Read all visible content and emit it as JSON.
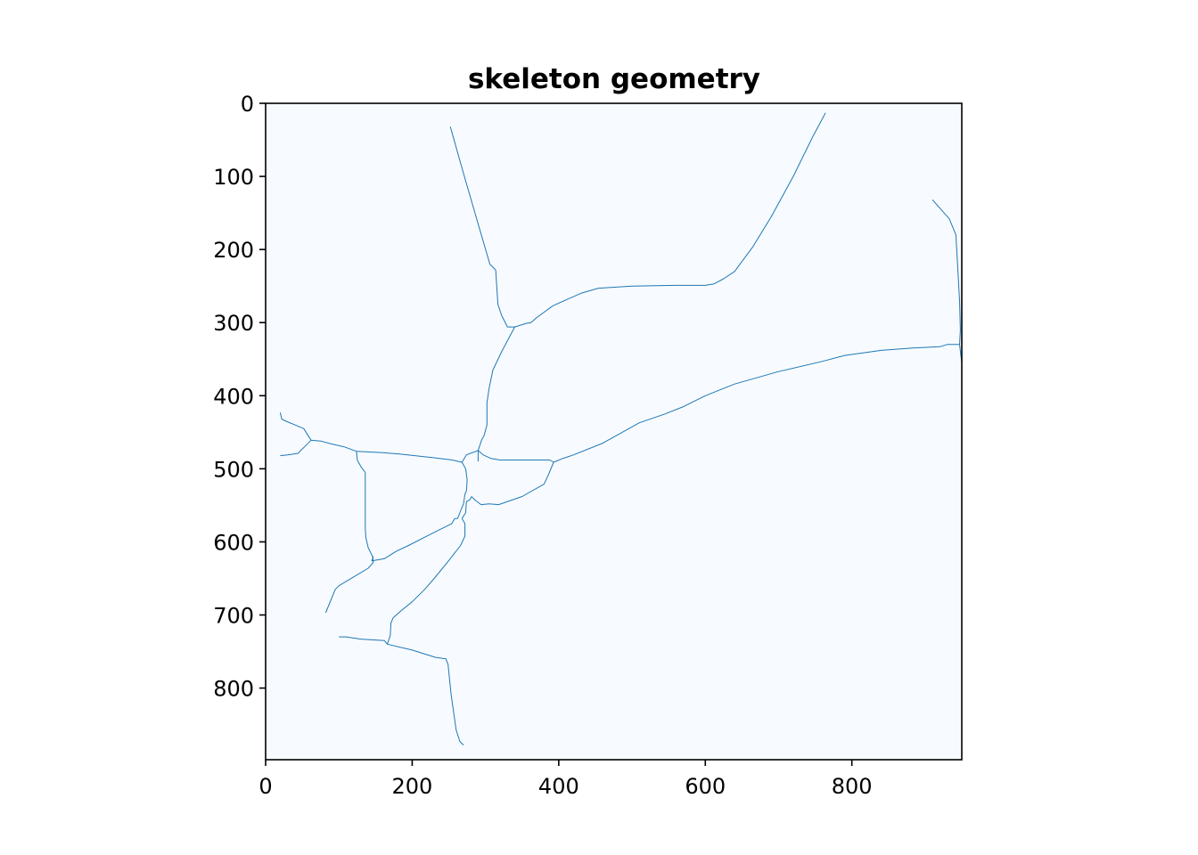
{
  "chart_data": {
    "type": "line",
    "title": "skeleton geometry",
    "xlabel": "",
    "ylabel": "",
    "xlim": [
      0,
      950
    ],
    "ylim": [
      898,
      0
    ],
    "y_inverted": true,
    "grid": false,
    "legend": "none",
    "background_color": "#f7fbff",
    "line_color": "#1f77b4",
    "x_ticks": [
      0,
      200,
      400,
      600,
      800
    ],
    "y_ticks": [
      0,
      100,
      200,
      300,
      400,
      500,
      600,
      700,
      800
    ],
    "x_tick_labels": [
      "0",
      "200",
      "400",
      "600",
      "800"
    ],
    "y_tick_labels": [
      "0",
      "100",
      "200",
      "300",
      "400",
      "500",
      "600",
      "700",
      "800"
    ],
    "series": [
      {
        "x": [
          252,
          270,
          290,
          306,
          314,
          317,
          322,
          330,
          340,
          356,
          362,
          370,
          392,
          430,
          454,
          500,
          560,
          600,
          612,
          625,
          640,
          665,
          690,
          720,
          747,
          755,
          764
        ],
        "y": [
          32,
          96,
          165,
          220,
          228,
          275,
          290,
          306,
          306,
          301,
          300,
          293,
          277,
          260,
          253,
          250,
          249,
          249,
          247,
          240,
          230,
          196,
          155,
          100,
          45,
          30,
          13
        ]
      },
      {
        "x": [
          340,
          322,
          310,
          305,
          302,
          302,
          298,
          295,
          290,
          290
        ],
        "y": [
          306,
          340,
          365,
          390,
          410,
          440,
          455,
          460,
          475,
          490
        ]
      },
      {
        "x": [
          20,
          22,
          28,
          40,
          52,
          62,
          75,
          90,
          107,
          124,
          160,
          184,
          230,
          255,
          268
        ],
        "y": [
          423,
          432,
          435,
          440,
          445,
          461,
          462,
          466,
          470,
          476,
          478,
          480,
          485,
          488,
          491
        ]
      },
      {
        "x": [
          20,
          30,
          44,
          62
        ],
        "y": [
          482,
          481,
          479,
          461
        ]
      },
      {
        "x": [
          268,
          274,
          279,
          290,
          297,
          308,
          320,
          360,
          388,
          393
        ],
        "y": [
          491,
          481,
          479,
          475,
          481,
          486,
          488,
          488,
          488,
          491
        ]
      },
      {
        "x": [
          393,
          405,
          420,
          460,
          510,
          545,
          570,
          600,
          640,
          700,
          760,
          790,
          840,
          880,
          920,
          930,
          947
        ],
        "y": [
          491,
          486,
          481,
          465,
          437,
          425,
          415,
          400,
          384,
          367,
          353,
          345,
          338,
          335,
          333,
          330,
          330
        ]
      },
      {
        "x": [
          947,
          950
        ],
        "y": [
          330,
          355
        ]
      },
      {
        "x": [
          947,
          948,
          947,
          942,
          933,
          910
        ],
        "y": [
          330,
          310,
          270,
          180,
          158,
          132
        ]
      },
      {
        "x": [
          393,
          386,
          380,
          350,
          318,
          305,
          294,
          286,
          281
        ],
        "y": [
          491,
          508,
          521,
          538,
          549,
          548,
          549,
          543,
          538
        ]
      },
      {
        "x": [
          268,
          273,
          275,
          274,
          272,
          270,
          267,
          262,
          258,
          254,
          240,
          220,
          195,
          178,
          170,
          162,
          145,
          147
        ],
        "y": [
          491,
          500,
          515,
          530,
          535,
          548,
          555,
          568,
          568,
          575,
          582,
          592,
          605,
          613,
          618,
          623,
          626,
          620
        ]
      },
      {
        "x": [
          281,
          279,
          274,
          273,
          268
        ],
        "y": [
          538,
          542,
          545,
          560,
          568
        ]
      },
      {
        "x": [
          268,
          272,
          272,
          266,
          248,
          230,
          217,
          200,
          185,
          174,
          171,
          170,
          166
        ],
        "y": [
          568,
          575,
          592,
          605,
          628,
          650,
          665,
          682,
          694,
          704,
          711,
          728,
          740
        ]
      },
      {
        "x": [
          124,
          125,
          130,
          136,
          136,
          137,
          140,
          146,
          147
        ],
        "y": [
          476,
          488,
          497,
          505,
          583,
          595,
          608,
          620,
          628
        ]
      },
      {
        "x": [
          147,
          140,
          120,
          100,
          95,
          82
        ],
        "y": [
          628,
          636,
          648,
          660,
          665,
          697
        ]
      },
      {
        "x": [
          100,
          110,
          130,
          162,
          166,
          200,
          232,
          246,
          249,
          253,
          260,
          265,
          270
        ],
        "y": [
          730,
          730,
          733,
          735,
          740,
          748,
          758,
          760,
          768,
          808,
          857,
          873,
          878
        ]
      }
    ]
  }
}
